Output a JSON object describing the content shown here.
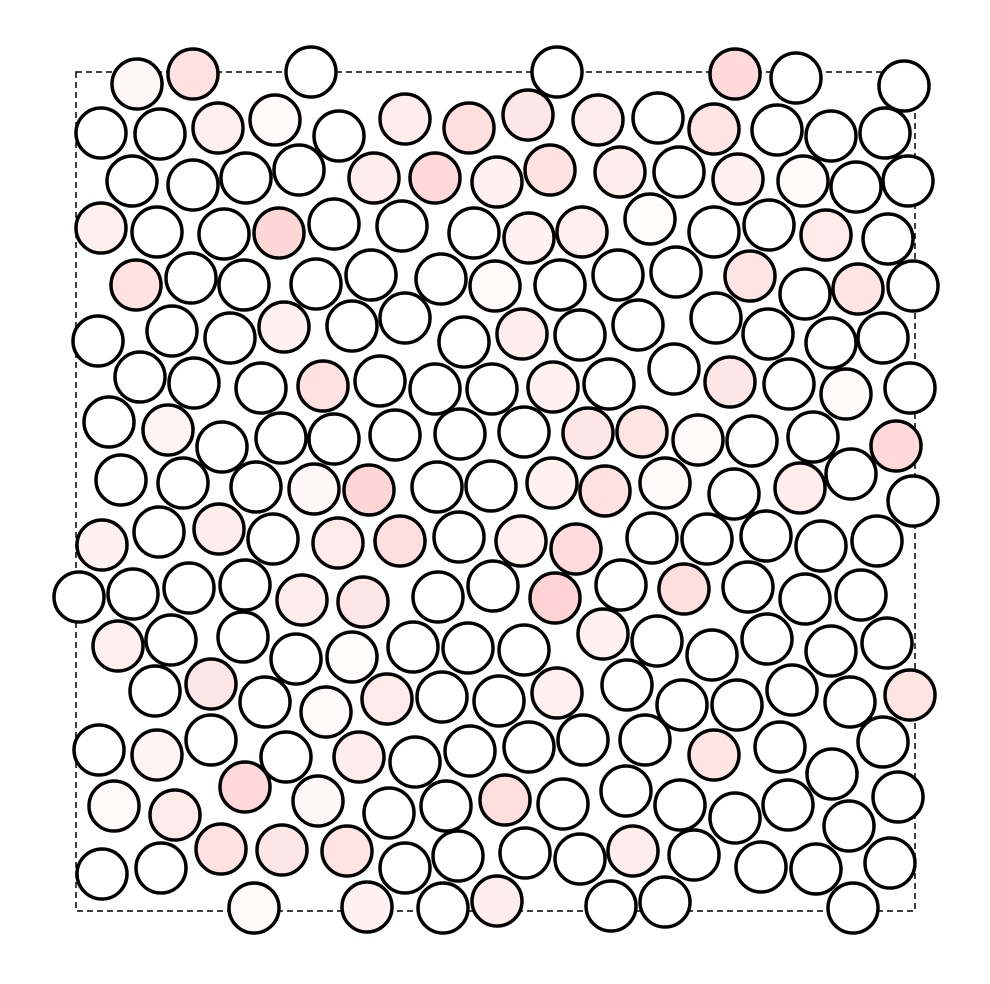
{
  "figure": {
    "type": "hard-disk packing diagram",
    "boundary": "dashed square",
    "disk_count": 212,
    "outline_color": "#000000",
    "boundary_color": "#000000",
    "fill_scale": {
      "low": "#ffffff",
      "high": "#ffc8c8"
    }
  }
}
